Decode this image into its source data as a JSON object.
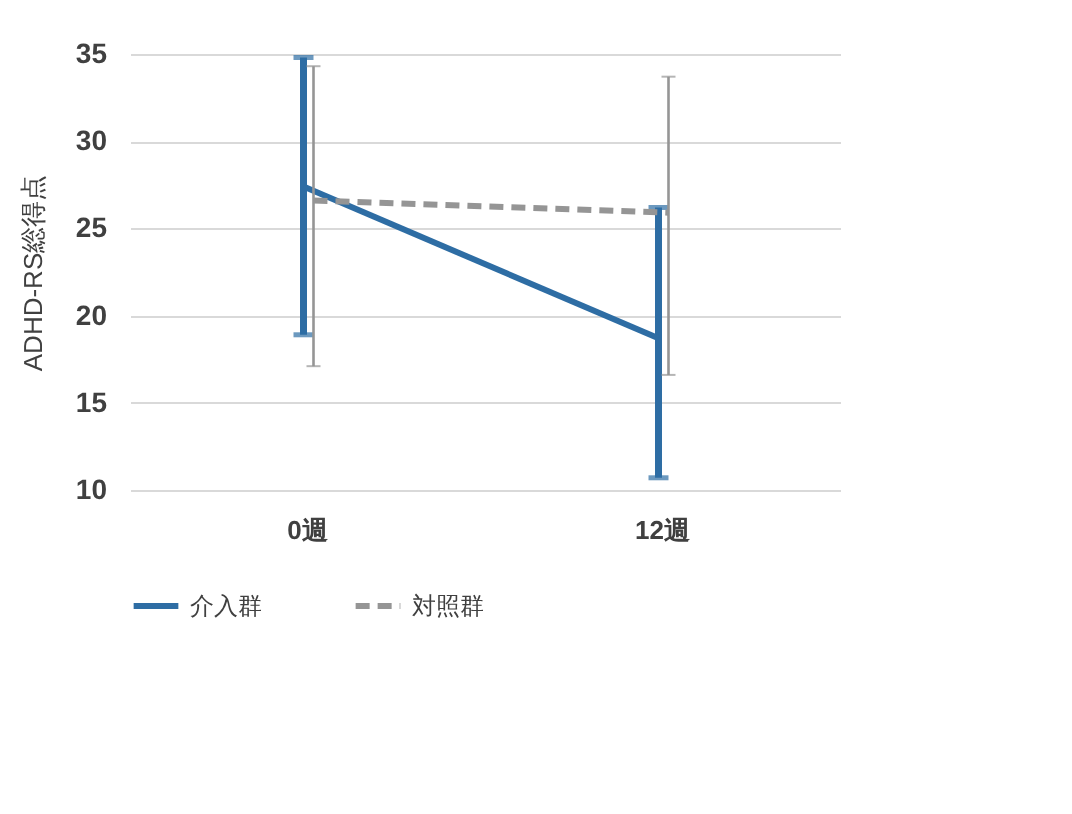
{
  "chart_data": {
    "type": "line",
    "ylabel": "ADHD-RS総得点",
    "categories": [
      "0週",
      "12週"
    ],
    "series": [
      {
        "name": "介入群",
        "color": "#2e6da4",
        "values": [
          27.4,
          18.7
        ],
        "errors": [
          [
            18.9,
            34.8
          ],
          [
            10.7,
            26.2
          ]
        ],
        "line_style": "solid"
      },
      {
        "name": "対照群",
        "color": "#959595",
        "values": [
          26.6,
          25.9
        ],
        "errors": [
          [
            17.1,
            34.3
          ],
          [
            16.6,
            33.7
          ]
        ],
        "line_style": "dashed"
      }
    ],
    "ylim": [
      10,
      35
    ],
    "yticks": [
      10,
      15,
      20,
      25,
      30,
      35
    ],
    "grid": "y",
    "legend": "bottom",
    "marker": "none"
  }
}
